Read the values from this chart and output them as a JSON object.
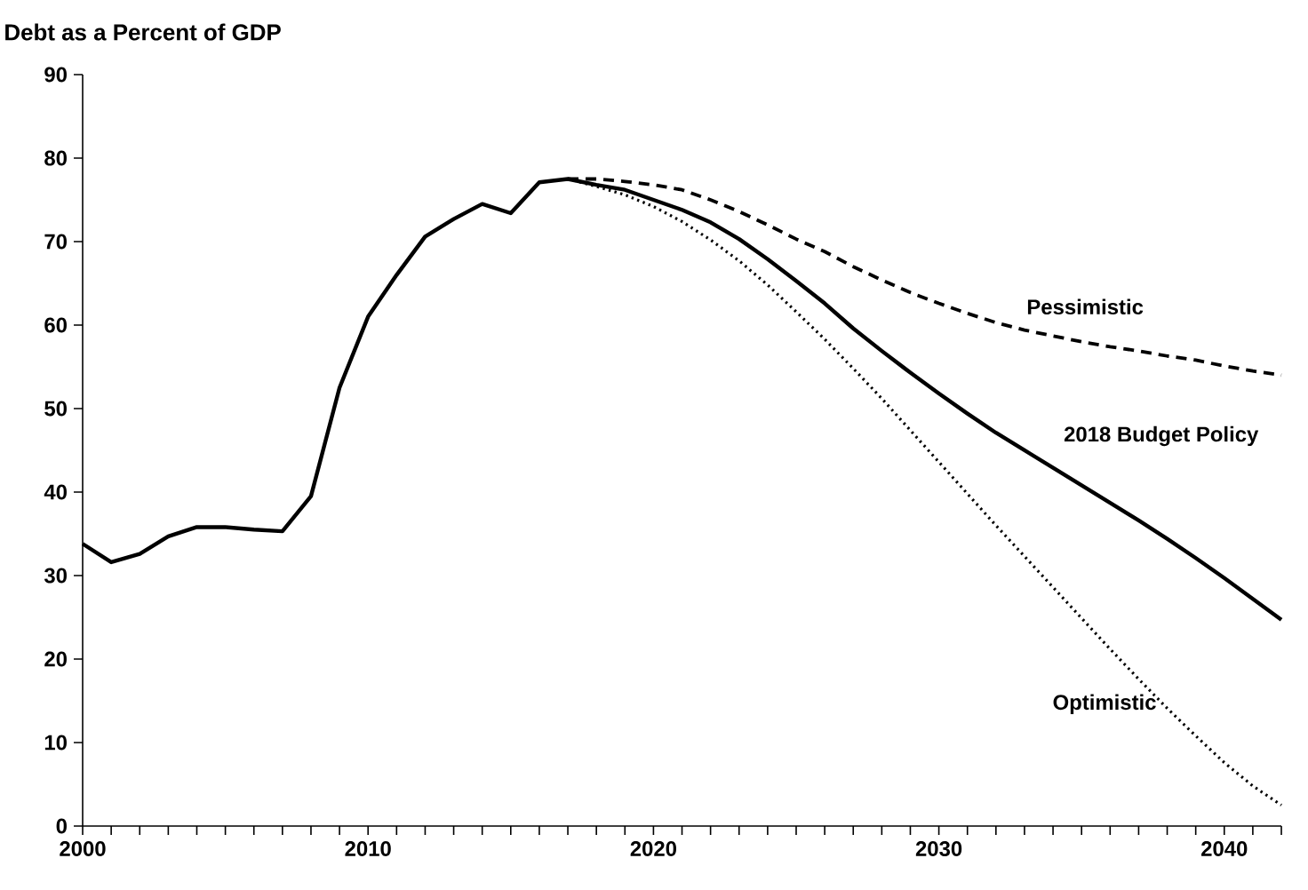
{
  "chart_data": {
    "type": "line",
    "title": "Debt as a Percent of GDP",
    "xlim": [
      2000,
      2042
    ],
    "ylim": [
      0,
      90
    ],
    "xticks": [
      2000,
      {
        "value": 2001,
        "label": null
      },
      {
        "value": 2002,
        "label": null
      },
      {
        "value": 2003,
        "label": null
      },
      {
        "value": 2004,
        "label": null
      },
      {
        "value": 2005,
        "label": null
      },
      {
        "value": 2006,
        "label": null
      },
      {
        "value": 2007,
        "label": null
      },
      {
        "value": 2008,
        "label": null
      },
      {
        "value": 2009,
        "label": null
      },
      2010,
      {
        "value": 2011,
        "label": null
      },
      {
        "value": 2012,
        "label": null
      },
      {
        "value": 2013,
        "label": null
      },
      {
        "value": 2014,
        "label": null
      },
      {
        "value": 2015,
        "label": null
      },
      {
        "value": 2016,
        "label": null
      },
      {
        "value": 2017,
        "label": null
      },
      {
        "value": 2018,
        "label": null
      },
      {
        "value": 2019,
        "label": null
      },
      2020,
      {
        "value": 2021,
        "label": null
      },
      {
        "value": 2022,
        "label": null
      },
      {
        "value": 2023,
        "label": null
      },
      {
        "value": 2024,
        "label": null
      },
      {
        "value": 2025,
        "label": null
      },
      {
        "value": 2026,
        "label": null
      },
      {
        "value": 2027,
        "label": null
      },
      {
        "value": 2028,
        "label": null
      },
      {
        "value": 2029,
        "label": null
      },
      2030,
      {
        "value": 2031,
        "label": null
      },
      {
        "value": 2032,
        "label": null
      },
      {
        "value": 2033,
        "label": null
      },
      {
        "value": 2034,
        "label": null
      },
      {
        "value": 2035,
        "label": null
      },
      {
        "value": 2036,
        "label": null
      },
      {
        "value": 2037,
        "label": null
      },
      {
        "value": 2038,
        "label": null
      },
      {
        "value": 2039,
        "label": null
      },
      2040,
      {
        "value": 2041,
        "label": null
      },
      {
        "value": 2042,
        "label": null
      }
    ],
    "yticks": [
      0,
      10,
      20,
      30,
      40,
      50,
      60,
      70,
      80,
      90
    ],
    "series": [
      {
        "name": "2018 Budget Policy",
        "color": "#000000",
        "line_style": "solid",
        "x": [
          2000,
          2001,
          2002,
          2003,
          2004,
          2005,
          2006,
          2007,
          2008,
          2009,
          2010,
          2011,
          2012,
          2013,
          2014,
          2015,
          2016,
          2017,
          2018,
          2019,
          2020,
          2021,
          2022,
          2023,
          2024,
          2025,
          2026,
          2027,
          2028,
          2029,
          2030,
          2031,
          2032,
          2033,
          2034,
          2035,
          2036,
          2037,
          2038,
          2039,
          2040,
          2041,
          2042
        ],
        "values": [
          33.8,
          31.6,
          32.6,
          34.7,
          35.8,
          35.8,
          35.5,
          35.3,
          39.5,
          52.5,
          61.0,
          66.0,
          70.6,
          72.7,
          74.5,
          73.4,
          77.1,
          77.5,
          76.8,
          76.2,
          75.0,
          73.8,
          72.3,
          70.3,
          67.9,
          65.3,
          62.6,
          59.6,
          56.9,
          54.3,
          51.8,
          49.4,
          47.1,
          45.0,
          42.9,
          40.8,
          38.7,
          36.6,
          34.4,
          32.1,
          29.7,
          27.2,
          24.7
        ]
      },
      {
        "name": "Pessimistic",
        "color": "#000000",
        "line_style": "dashed",
        "x": [
          2017,
          2018,
          2019,
          2020,
          2021,
          2022,
          2023,
          2024,
          2025,
          2026,
          2027,
          2028,
          2029,
          2030,
          2031,
          2032,
          2033,
          2034,
          2035,
          2036,
          2037,
          2038,
          2039,
          2040,
          2041,
          2042
        ],
        "values": [
          77.5,
          77.5,
          77.2,
          76.8,
          76.2,
          75.0,
          73.6,
          72.0,
          70.3,
          68.8,
          67.0,
          65.4,
          63.9,
          62.6,
          61.4,
          60.3,
          59.4,
          58.7,
          58.0,
          57.4,
          56.9,
          56.3,
          55.8,
          55.1,
          54.5,
          54.0
        ]
      },
      {
        "name": "Optimistic",
        "color": "#000000",
        "line_style": "dotted",
        "x": [
          2017,
          2018,
          2019,
          2020,
          2021,
          2022,
          2023,
          2024,
          2025,
          2026,
          2027,
          2028,
          2029,
          2030,
          2031,
          2032,
          2033,
          2034,
          2035,
          2036,
          2037,
          2038,
          2039,
          2040,
          2041,
          2042
        ],
        "values": [
          77.5,
          76.6,
          75.6,
          74.2,
          72.4,
          70.2,
          67.7,
          64.8,
          61.6,
          58.3,
          54.8,
          51.2,
          47.4,
          43.6,
          39.8,
          36.0,
          32.3,
          28.6,
          24.9,
          21.2,
          17.6,
          14.1,
          10.8,
          7.6,
          4.8,
          2.5
        ]
      }
    ]
  }
}
